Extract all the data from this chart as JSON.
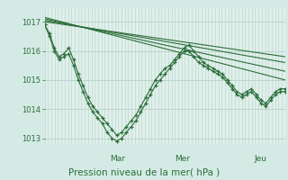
{
  "bg_color": "#d4ebe5",
  "plot_bg_color": "#dff0eb",
  "grid_color": "#b8d0c8",
  "line_color": "#2d6e3a",
  "title": "Pression niveau de la mer( hPa )",
  "ylim": [
    1012.8,
    1017.5
  ],
  "yticks": [
    1013,
    1014,
    1015,
    1016,
    1017
  ],
  "day_labels": [
    "Mar",
    "Mer",
    "Jeu"
  ],
  "day_positions": [
    0.27,
    0.54,
    0.87
  ],
  "straight_lines": [
    [
      [
        0,
        1017.0
      ],
      [
        1,
        1015.8
      ]
    ],
    [
      [
        0,
        1017.05
      ],
      [
        1,
        1015.6
      ]
    ],
    [
      [
        0,
        1017.1
      ],
      [
        1,
        1015.3
      ]
    ],
    [
      [
        0,
        1017.15
      ],
      [
        1,
        1015.0
      ]
    ]
  ],
  "wavy_x": [
    0.0,
    0.02,
    0.04,
    0.06,
    0.08,
    0.1,
    0.12,
    0.14,
    0.16,
    0.18,
    0.2,
    0.22,
    0.24,
    0.26,
    0.28,
    0.3,
    0.32,
    0.34,
    0.36,
    0.38,
    0.4,
    0.42,
    0.44,
    0.46,
    0.48,
    0.5,
    0.52,
    0.54,
    0.56,
    0.58,
    0.6,
    0.62,
    0.64,
    0.66,
    0.68,
    0.7,
    0.72,
    0.74,
    0.76,
    0.78,
    0.8,
    0.82,
    0.84,
    0.86,
    0.88,
    0.9,
    0.92,
    0.94,
    0.96,
    0.98,
    1.0
  ],
  "wavy_series": [
    [
      1016.9,
      1016.6,
      1016.1,
      1015.8,
      1015.9,
      1016.1,
      1015.7,
      1015.2,
      1014.8,
      1014.4,
      1014.1,
      1013.9,
      1013.7,
      1013.5,
      1013.3,
      1013.1,
      1013.2,
      1013.4,
      1013.6,
      1013.8,
      1014.1,
      1014.4,
      1014.7,
      1015.0,
      1015.2,
      1015.4,
      1015.5,
      1015.7,
      1015.9,
      1016.1,
      1016.2,
      1016.0,
      1015.8,
      1015.6,
      1015.5,
      1015.4,
      1015.3,
      1015.2,
      1015.0,
      1014.8,
      1014.6,
      1014.5,
      1014.6,
      1014.7,
      1014.5,
      1014.3,
      1014.2,
      1014.4,
      1014.6,
      1014.7,
      1014.7
    ],
    [
      1016.9,
      1016.5,
      1016.0,
      1015.7,
      1015.8,
      1015.9,
      1015.5,
      1015.0,
      1014.6,
      1014.2,
      1013.9,
      1013.7,
      1013.5,
      1013.2,
      1013.0,
      1012.9,
      1013.0,
      1013.2,
      1013.4,
      1013.6,
      1013.9,
      1014.2,
      1014.5,
      1014.8,
      1015.0,
      1015.2,
      1015.4,
      1015.6,
      1015.8,
      1016.0,
      1016.0,
      1015.8,
      1015.6,
      1015.5,
      1015.4,
      1015.3,
      1015.2,
      1015.1,
      1014.9,
      1014.7,
      1014.5,
      1014.4,
      1014.5,
      1014.6,
      1014.4,
      1014.2,
      1014.1,
      1014.3,
      1014.5,
      1014.6,
      1014.6
    ]
  ]
}
